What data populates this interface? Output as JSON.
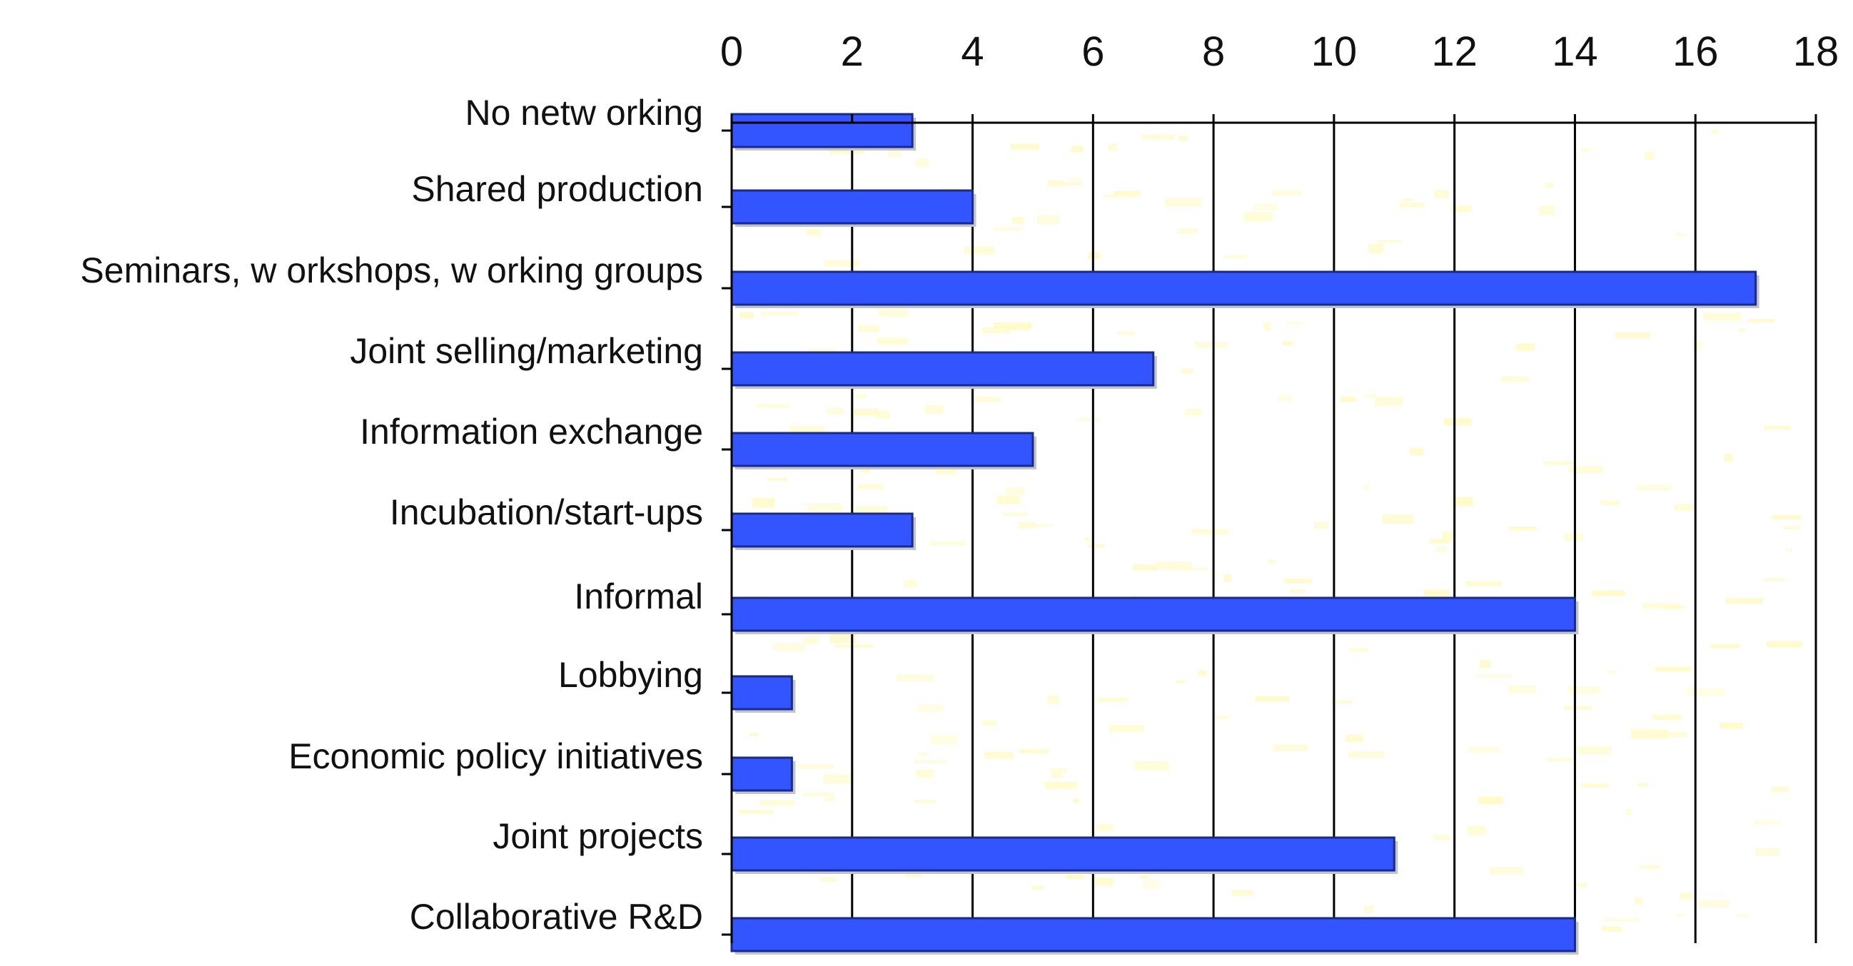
{
  "chart_data": {
    "type": "bar",
    "orientation": "horizontal",
    "title": "",
    "xlabel": "",
    "ylabel": "",
    "xlim": [
      0,
      18
    ],
    "x_ticks": [
      0,
      2,
      4,
      6,
      8,
      10,
      12,
      14,
      16,
      18
    ],
    "x_tick_labels": [
      "0",
      "2",
      "4",
      "6",
      "8",
      "10",
      "12",
      "14",
      "16",
      "18"
    ],
    "x_axis_position": "top",
    "grid": "vertical gridlines at each tick",
    "legend": "none",
    "categories": [
      "No netw orking",
      "Shared production",
      "Seminars, w orkshops, w orking groups",
      "Joint selling/marketing",
      "Information exchange",
      "Incubation/start-ups",
      "Informal",
      "Lobbying",
      "Economic policy initiatives",
      "Joint projects",
      "Collaborative R&D"
    ],
    "series": [
      {
        "values": [
          3,
          4,
          17,
          7,
          5,
          3,
          14,
          1,
          1,
          11,
          14
        ]
      }
    ],
    "colors": {
      "bar_fill": "#3355ff",
      "bar_edge": "#1a2a88",
      "bar_shadow": "#c4c4c4",
      "plot_background": "#ffffff",
      "speckle": "#fffbcc",
      "gridline": "#000000"
    }
  }
}
